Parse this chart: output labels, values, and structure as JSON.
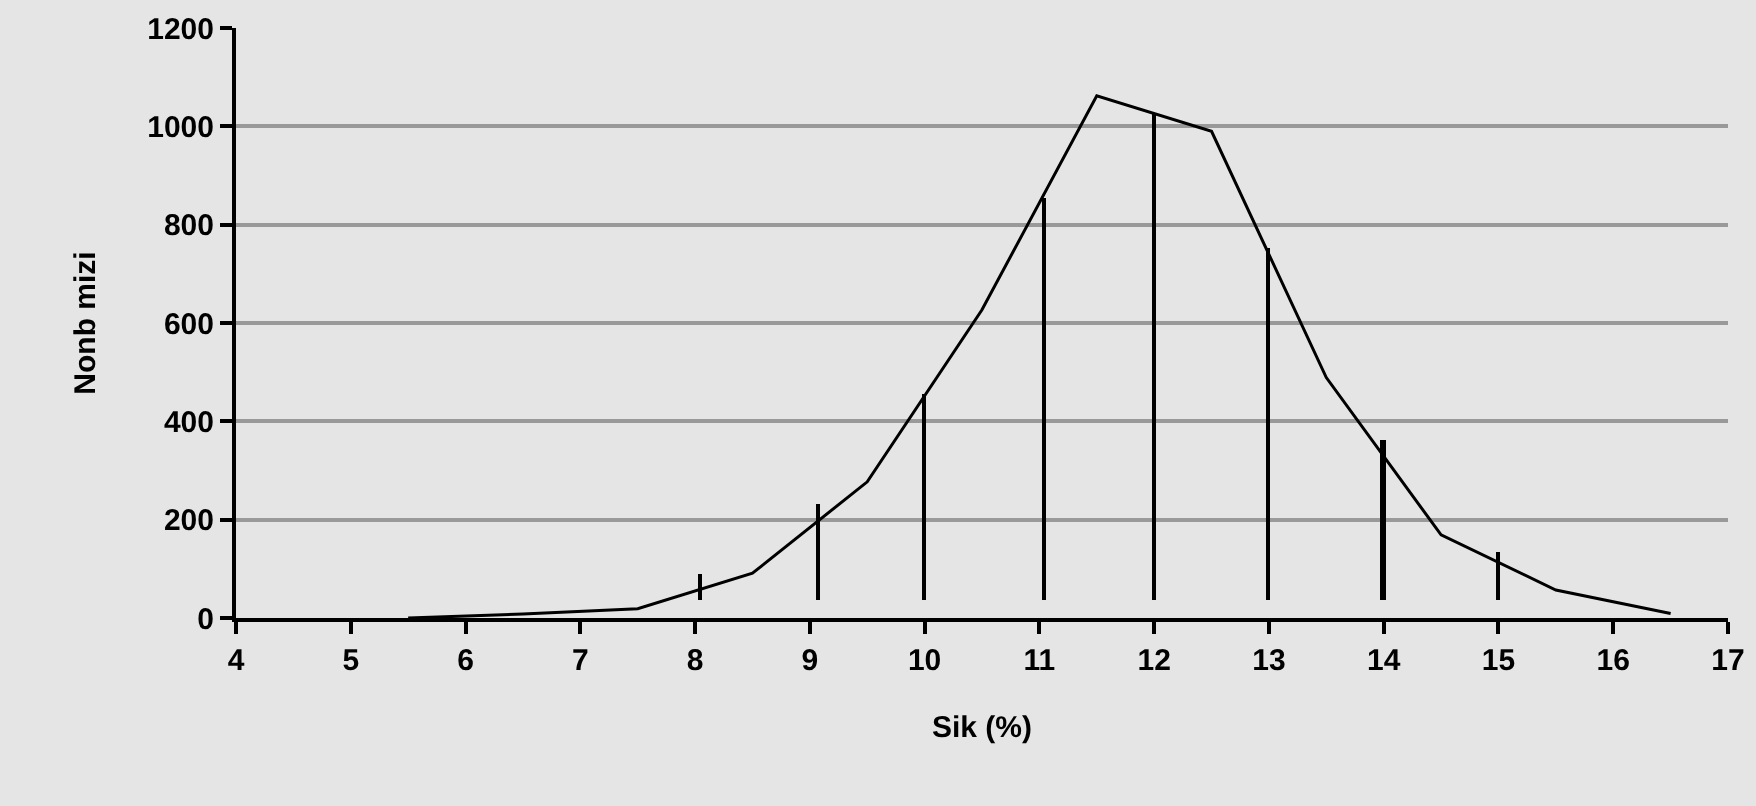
{
  "chart_data": {
    "type": "line",
    "xlabel": "Sik (%)",
    "ylabel": "Nonb mizi",
    "xlim": [
      4,
      17
    ],
    "xticks": [
      4,
      5,
      6,
      7,
      8,
      9,
      10,
      11,
      12,
      13,
      14,
      15,
      16,
      17
    ],
    "ylim": [
      0,
      1200
    ],
    "yticks": [
      0,
      200,
      400,
      600,
      800,
      1000,
      1200
    ],
    "grid": "y",
    "legend": false,
    "marker": "none",
    "line_style": "solid",
    "series": [
      {
        "color": "#000000",
        "x": [
          5.5,
          6.5,
          7.5,
          8.5,
          9.5,
          10.5,
          11.5,
          12.5,
          13.5,
          14.5,
          15.5,
          16.5
        ],
        "values": [
          0,
          8,
          19,
          91,
          277,
          627,
          1062,
          990,
          489,
          169,
          57,
          9
        ]
      },
      {
        "type": "bar",
        "color": "#000000",
        "x": [
          8.05,
          9.07,
          10,
          11.05,
          12,
          13,
          14,
          15
        ],
        "base": [
          37,
          37,
          37,
          37,
          37,
          37,
          37,
          37
        ],
        "values": [
          51,
          194,
          420,
          816,
          990,
          715,
          325,
          97
        ]
      }
    ]
  }
}
